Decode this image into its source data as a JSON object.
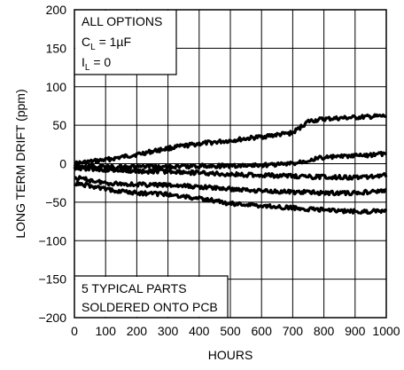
{
  "chart_data": {
    "type": "line",
    "title": "",
    "xlabel": "HOURS",
    "ylabel": "LONG TERM DRIFT (ppm)",
    "xlim": [
      0,
      1000
    ],
    "ylim": [
      -200,
      200
    ],
    "x_ticks": [
      0,
      100,
      200,
      300,
      400,
      500,
      600,
      700,
      800,
      900,
      1000
    ],
    "x_tick_labels": [
      "0",
      "100",
      "200",
      "300",
      "400",
      "500",
      "600",
      "700",
      "800",
      "900",
      "1000"
    ],
    "y_ticks": [
      -200,
      -150,
      -100,
      -50,
      0,
      50,
      100,
      150,
      200
    ],
    "y_tick_labels": [
      "−200",
      "−150",
      "−100",
      "−50",
      "0",
      "50",
      "100",
      "150",
      "200"
    ],
    "grid": true,
    "colors": {
      "line": "#000000",
      "grid": "#000000",
      "background": "#ffffff"
    },
    "annotations": {
      "top_left": {
        "line1": "ALL OPTIONS",
        "cl_main": "C",
        "cl_sub": "L",
        "cl_rest": " = 1µF",
        "il_main": "I",
        "il_sub": "L",
        "il_rest": " = 0"
      },
      "bottom_left": {
        "line1": "5 TYPICAL PARTS",
        "line2": "SOLDERED ONTO PCB"
      }
    },
    "x": [
      0,
      100,
      200,
      300,
      400,
      500,
      600,
      700,
      750,
      800,
      900,
      1000
    ],
    "series": [
      {
        "values": [
          0,
          5,
          12,
          20,
          26,
          30,
          35,
          40,
          55,
          58,
          60,
          62
        ]
      },
      {
        "values": [
          -3,
          -4,
          -4,
          -4,
          -3,
          -3,
          -2,
          0,
          5,
          8,
          10,
          13
        ]
      },
      {
        "values": [
          -5,
          -8,
          -10,
          -10,
          -12,
          -14,
          -15,
          -16,
          -17,
          -17,
          -18,
          -15
        ]
      },
      {
        "values": [
          -18,
          -25,
          -27,
          -28,
          -30,
          -33,
          -35,
          -37,
          -37,
          -38,
          -38,
          -35
        ]
      },
      {
        "values": [
          -25,
          -33,
          -38,
          -40,
          -45,
          -52,
          -55,
          -57,
          -59,
          -60,
          -62,
          -62
        ]
      }
    ]
  }
}
